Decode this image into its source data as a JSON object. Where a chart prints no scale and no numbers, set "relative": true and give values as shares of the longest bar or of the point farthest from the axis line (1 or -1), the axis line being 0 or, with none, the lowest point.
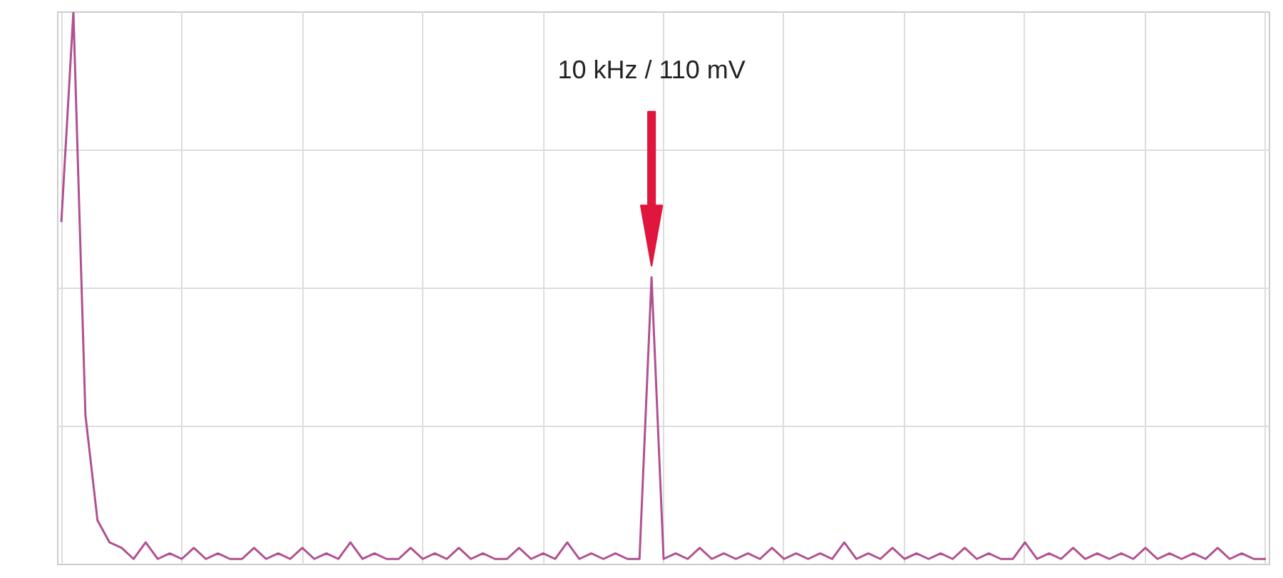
{
  "chart_data": {
    "type": "line",
    "relative": true,
    "grid": true,
    "categories": [
      null,
      null,
      null,
      null,
      null,
      null,
      null,
      null,
      null,
      null,
      null,
      null,
      null,
      null,
      null,
      null,
      null,
      null,
      null,
      null,
      null,
      null,
      null,
      null,
      null,
      null,
      null,
      null,
      null,
      null,
      null,
      null,
      null,
      null,
      null,
      null,
      null,
      null,
      null,
      null,
      null,
      null,
      null,
      null,
      null,
      null,
      null,
      null,
      null,
      null,
      null,
      null,
      null,
      null,
      null,
      null,
      null,
      null,
      null,
      null,
      null,
      null,
      null,
      null,
      null,
      null,
      null,
      null,
      null,
      null,
      null,
      null,
      null,
      null,
      null,
      null,
      null,
      null,
      null,
      null,
      null,
      null,
      null,
      null,
      null,
      null,
      null,
      null,
      null,
      null,
      null,
      null,
      null,
      null,
      null,
      null,
      null,
      null,
      null,
      null,
      null
    ],
    "series": [
      {
        "color": "#b0508f",
        "values": [
          0.62,
          1.0,
          0.27,
          0.08,
          0.04,
          0.03,
          0.01,
          0.04,
          0.01,
          0.02,
          0.01,
          0.03,
          0.01,
          0.02,
          0.01,
          0.01,
          0.03,
          0.01,
          0.02,
          0.01,
          0.03,
          0.01,
          0.02,
          0.01,
          0.04,
          0.01,
          0.02,
          0.01,
          0.01,
          0.03,
          0.01,
          0.02,
          0.01,
          0.03,
          0.01,
          0.02,
          0.01,
          0.01,
          0.03,
          0.01,
          0.02,
          0.01,
          0.04,
          0.01,
          0.02,
          0.01,
          0.02,
          0.01,
          0.01,
          0.52,
          0.01,
          0.02,
          0.01,
          0.03,
          0.01,
          0.02,
          0.01,
          0.02,
          0.01,
          0.03,
          0.01,
          0.02,
          0.01,
          0.02,
          0.01,
          0.04,
          0.01,
          0.02,
          0.01,
          0.03,
          0.01,
          0.02,
          0.01,
          0.02,
          0.01,
          0.03,
          0.01,
          0.02,
          0.01,
          0.01,
          0.04,
          0.01,
          0.02,
          0.01,
          0.03,
          0.01,
          0.02,
          0.01,
          0.02,
          0.01,
          0.03,
          0.01,
          0.02,
          0.01,
          0.02,
          0.01,
          0.03,
          0.01,
          0.02,
          0.01,
          0.01
        ]
      }
    ],
    "annotations": [
      "10 kHz / 110 mV"
    ]
  }
}
